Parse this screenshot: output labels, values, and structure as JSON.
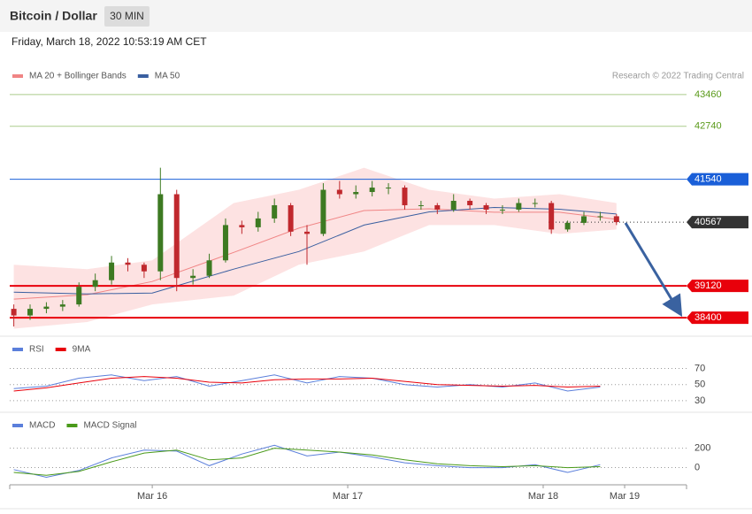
{
  "header": {
    "title": "Bitcoin / Dollar",
    "interval": "30 MIN",
    "timestamp": "Friday, March 18, 2022 10:53:19 AM CET"
  },
  "chart_data": [
    {
      "type": "candlestick",
      "credit": "Research © 2022 Trading Central",
      "up_color": "#3d7a22",
      "down_color": "#c0282d",
      "xlim": [
        -17.5,
        65.6
      ],
      "ylim": [
        38000,
        44200
      ],
      "x": [
        -17,
        -15,
        -13,
        -11,
        -9,
        -7,
        -5,
        -3,
        -1,
        1,
        3,
        5,
        7,
        9,
        11,
        13,
        15,
        17,
        19,
        21,
        23,
        25,
        27,
        29,
        31,
        33,
        35,
        37,
        39,
        41,
        43,
        45,
        47,
        49,
        51,
        53,
        55,
        57
      ],
      "open": [
        38600,
        38450,
        38600,
        38650,
        38700,
        39100,
        39250,
        39650,
        39600,
        39450,
        41200,
        39300,
        39350,
        39700,
        40500,
        40450,
        40650,
        40950,
        40350,
        40300,
        41300,
        41200,
        41250,
        41350,
        41350,
        40950,
        40950,
        40850,
        41050,
        40950,
        40850,
        40850,
        41000,
        41000,
        40400,
        40550,
        40700,
        40700
      ],
      "high": [
        38700,
        38700,
        38750,
        38800,
        39200,
        39400,
        39800,
        39750,
        39650,
        41800,
        41300,
        39500,
        39850,
        40650,
        40600,
        40800,
        41100,
        41000,
        40500,
        41450,
        41500,
        41400,
        41500,
        41450,
        41400,
        41050,
        41000,
        41200,
        41100,
        41000,
        40950,
        41100,
        41100,
        41050,
        40600,
        40800,
        40800,
        40750
      ],
      "low": [
        38200,
        38350,
        38500,
        38550,
        38650,
        39000,
        39150,
        39450,
        39300,
        39250,
        39000,
        39150,
        39300,
        39650,
        40300,
        40350,
        40550,
        40250,
        39600,
        40250,
        41100,
        41100,
        41150,
        41200,
        40850,
        40850,
        40750,
        40800,
        40850,
        40750,
        40750,
        40800,
        40900,
        40300,
        40350,
        40500,
        40600,
        40500
      ],
      "close": [
        38450,
        38600,
        38650,
        38700,
        39100,
        39250,
        39650,
        39600,
        39450,
        41200,
        39300,
        39350,
        39700,
        40500,
        40450,
        40650,
        40950,
        40350,
        40300,
        41300,
        41200,
        41250,
        41350,
        41350,
        40950,
        40950,
        40850,
        41050,
        40950,
        40850,
        40850,
        41000,
        41000,
        40400,
        40550,
        40700,
        40700,
        40567
      ],
      "overlays": [
        {
          "name": "MA 20 + Bollinger Bands",
          "color": "#f08585",
          "band_color": "#fde2e2",
          "x": [
            -17,
            -8,
            0,
            10,
            18,
            26,
            34,
            42,
            50,
            57
          ],
          "values": [
            38820,
            38920,
            39220,
            39880,
            40430,
            40830,
            40870,
            40790,
            40790,
            40630
          ],
          "upper": [
            39600,
            39500,
            39700,
            41000,
            41300,
            41800,
            41300,
            41100,
            41200,
            41000
          ],
          "lower": [
            38150,
            38300,
            38700,
            38900,
            39600,
            39900,
            40500,
            40500,
            40300,
            40400
          ]
        },
        {
          "name": "MA 50",
          "color": "#3a5fa0",
          "x": [
            -17,
            -8,
            0,
            10,
            18,
            26,
            34,
            42,
            50,
            57
          ],
          "values": [
            38980,
            38940,
            38960,
            39500,
            39900,
            40500,
            40800,
            40900,
            40860,
            40750
          ]
        }
      ],
      "levels": [
        {
          "value": 43460,
          "color": "#5a9a1a",
          "style": "text"
        },
        {
          "value": 42740,
          "color": "#5a9a1a",
          "style": "text"
        },
        {
          "value": 41540,
          "color": "#1a5fd8",
          "style": "box"
        },
        {
          "value": 40567,
          "color": "#333333",
          "style": "box",
          "dotted": true
        },
        {
          "value": 39120,
          "color": "#e8000b",
          "style": "box"
        },
        {
          "value": 38400,
          "color": "#e8000b",
          "style": "box"
        }
      ]
    },
    {
      "type": "line",
      "xlim": [
        -17.5,
        65.6
      ],
      "ylim": [
        20,
        97
      ],
      "yticks": [
        30,
        50,
        70
      ],
      "grid": "dotted",
      "x": [
        -17,
        -13,
        -9,
        -5,
        -1,
        3,
        7,
        11,
        15,
        19,
        23,
        27,
        31,
        35,
        39,
        43,
        47,
        51,
        55
      ],
      "series": [
        {
          "name": "RSI",
          "color": "#5b7fdb",
          "values": [
            45,
            48,
            58,
            62,
            55,
            60,
            48,
            55,
            62,
            52,
            60,
            58,
            50,
            47,
            50,
            47,
            52,
            42,
            47
          ]
        },
        {
          "name": "9MA",
          "color": "#e8000b",
          "values": [
            42,
            46,
            52,
            58,
            60,
            58,
            53,
            52,
            56,
            57,
            57,
            58,
            54,
            50,
            49,
            48,
            49,
            47,
            48
          ]
        }
      ]
    },
    {
      "type": "line",
      "xlim": [
        -17.5,
        65.6
      ],
      "ylim": [
        -150,
        370
      ],
      "yticks": [
        0,
        200
      ],
      "xticks": [
        {
          "value": 0,
          "label": "Mar 16"
        },
        {
          "value": 24,
          "label": "Mar 17"
        },
        {
          "value": 48,
          "label": "Mar 18"
        },
        {
          "value": 58,
          "label": "Mar 19"
        }
      ],
      "x": [
        -17,
        -13,
        -9,
        -5,
        -1,
        3,
        7,
        11,
        15,
        19,
        23,
        27,
        31,
        35,
        39,
        43,
        47,
        51,
        55
      ],
      "series": [
        {
          "name": "MACD",
          "color": "#5b7fdb",
          "values": [
            -20,
            -100,
            -30,
            100,
            180,
            170,
            20,
            140,
            230,
            120,
            160,
            110,
            50,
            20,
            0,
            0,
            30,
            -50,
            30
          ]
        },
        {
          "name": "MACD Signal",
          "color": "#4a9a1a",
          "values": [
            -50,
            -80,
            -40,
            60,
            150,
            180,
            80,
            100,
            200,
            180,
            160,
            130,
            80,
            40,
            20,
            10,
            20,
            0,
            10
          ]
        }
      ]
    }
  ]
}
